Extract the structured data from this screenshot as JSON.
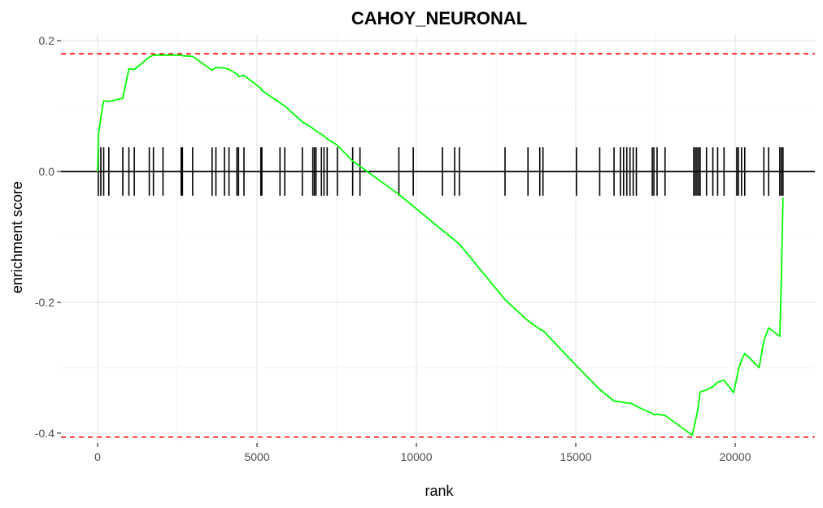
{
  "chart_data": {
    "type": "line",
    "title": "CAHOY_NEURONAL",
    "xlabel": "rank",
    "ylabel": "enrichment score",
    "xlim": [
      -1150,
      22500
    ],
    "ylim": [
      -0.415,
      0.21
    ],
    "x_ticks": [
      0,
      5000,
      10000,
      15000,
      20000
    ],
    "x_tick_labels": [
      "0",
      "5000",
      "10000",
      "15000",
      "20000"
    ],
    "y_ticks": [
      0.2,
      0.0,
      -0.2,
      -0.4
    ],
    "y_tick_labels": [
      "0.2",
      "0.0",
      "-0.2",
      "-0.4"
    ],
    "grid": true,
    "legend": "none",
    "colors": {
      "curve": "#00ff00",
      "reference": "#ff0000",
      "hits": "#000000",
      "grid": "#ebebeb"
    },
    "reference_lines": {
      "max_es": 0.18,
      "min_es": -0.406
    },
    "hits": [
      20,
      100,
      190,
      350,
      790,
      980,
      1150,
      1620,
      1750,
      2050,
      2620,
      2660,
      2980,
      3590,
      3710,
      3980,
      4120,
      4370,
      4420,
      4590,
      5120,
      5150,
      5720,
      5870,
      6420,
      6750,
      6800,
      6850,
      7020,
      7100,
      7200,
      7520,
      8000,
      8230,
      9450,
      9900,
      10820,
      11200,
      11350,
      12780,
      13500,
      13870,
      13970,
      15020,
      15750,
      16200,
      16400,
      16500,
      16600,
      16700,
      16800,
      16900,
      17400,
      17450,
      17550,
      17800,
      18700,
      18750,
      18800,
      18850,
      18900,
      19100,
      19300,
      19450,
      19650,
      20050,
      20100,
      20200,
      20300,
      20900,
      21050,
      21400,
      21450,
      21500
    ],
    "series": [
      {
        "x": [
          0,
          20,
          100,
          190,
          350,
          790,
          980,
          1150,
          1620,
          1750,
          2050,
          2620,
          2660,
          2980,
          3590,
          3710,
          3980,
          4120,
          4370,
          4420,
          4590,
          5120,
          5150,
          5720,
          5870,
          6420,
          6750,
          6800,
          6850,
          7020,
          7100,
          7200,
          7520,
          8000,
          8230,
          9450,
          9900,
          10820,
          11200,
          11350,
          12780,
          13500,
          13870,
          13970,
          15020,
          15750,
          16200,
          16400,
          16500,
          16600,
          16700,
          16800,
          16900,
          17400,
          17450,
          17550,
          17800,
          18650,
          18700,
          18750,
          18800,
          18850,
          18900,
          19100,
          19300,
          19450,
          19650,
          19950,
          20050,
          20100,
          20200,
          20300,
          20750,
          20900,
          21050,
          21400,
          21450,
          21500
        ],
        "y": [
          0.0,
          0.055,
          0.083,
          0.108,
          0.107,
          0.112,
          0.157,
          0.156,
          0.175,
          0.178,
          0.178,
          0.178,
          0.177,
          0.176,
          0.155,
          0.159,
          0.158,
          0.156,
          0.149,
          0.145,
          0.147,
          0.127,
          0.124,
          0.105,
          0.1,
          0.076,
          0.066,
          0.064,
          0.062,
          0.057,
          0.054,
          0.05,
          0.04,
          0.016,
          0.008,
          -0.035,
          -0.053,
          -0.09,
          -0.105,
          -0.111,
          -0.196,
          -0.228,
          -0.241,
          -0.243,
          -0.297,
          -0.333,
          -0.351,
          -0.352,
          -0.353,
          -0.354,
          -0.354,
          -0.356,
          -0.359,
          -0.37,
          -0.372,
          -0.371,
          -0.373,
          -0.403,
          -0.393,
          -0.382,
          -0.37,
          -0.357,
          -0.337,
          -0.334,
          -0.329,
          -0.322,
          -0.319,
          -0.338,
          -0.316,
          -0.303,
          -0.289,
          -0.278,
          -0.3,
          -0.259,
          -0.239,
          -0.252,
          -0.165,
          -0.04
        ]
      }
    ]
  }
}
